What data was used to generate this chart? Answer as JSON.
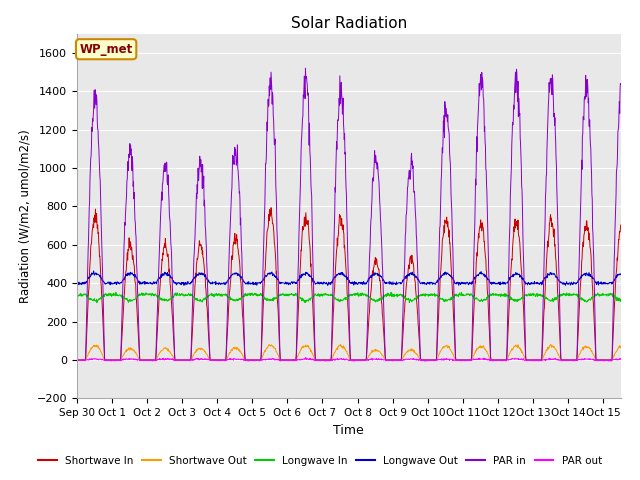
{
  "title": "Solar Radiation",
  "xlabel": "Time",
  "ylabel": "Radiation (W/m2, umol/m2/s)",
  "ylim": [
    -200,
    1700
  ],
  "yticks": [
    -200,
    0,
    200,
    400,
    600,
    800,
    1000,
    1200,
    1400,
    1600
  ],
  "n_days": 15.5,
  "n_points": 1488,
  "colors": {
    "shortwave_in": "#cc0000",
    "shortwave_out": "#ff9900",
    "longwave_in": "#00cc00",
    "longwave_out": "#0000cc",
    "par_in": "#8800cc",
    "par_out": "#ff00ff"
  },
  "annotation_text": "WP_met",
  "annotation_bg": "#ffffcc",
  "annotation_border": "#cc8800",
  "background_color": "#e8e8e8",
  "grid_color": "#ffffff",
  "sw_in_peaks": [
    740,
    600,
    590,
    600,
    640,
    780,
    750,
    730,
    525,
    530,
    730,
    710,
    720,
    720,
    710,
    700,
    700
  ],
  "par_in_peaks": [
    1380,
    1080,
    1020,
    1030,
    1090,
    1440,
    1460,
    1400,
    1050,
    1040,
    1310,
    1470,
    1470,
    1460,
    1430,
    1420,
    1400
  ],
  "lw_in_base": 340,
  "lw_out_base": 400,
  "tick_labels": [
    "Sep 30",
    "Oct 1",
    "Oct 2",
    "Oct 3",
    "Oct 4",
    "Oct 5",
    "Oct 6",
    "Oct 7",
    "Oct 8",
    "Oct 9",
    "Oct 10",
    "Oct 11",
    "Oct 12",
    "Oct 13",
    "Oct 14",
    "Oct 15"
  ]
}
